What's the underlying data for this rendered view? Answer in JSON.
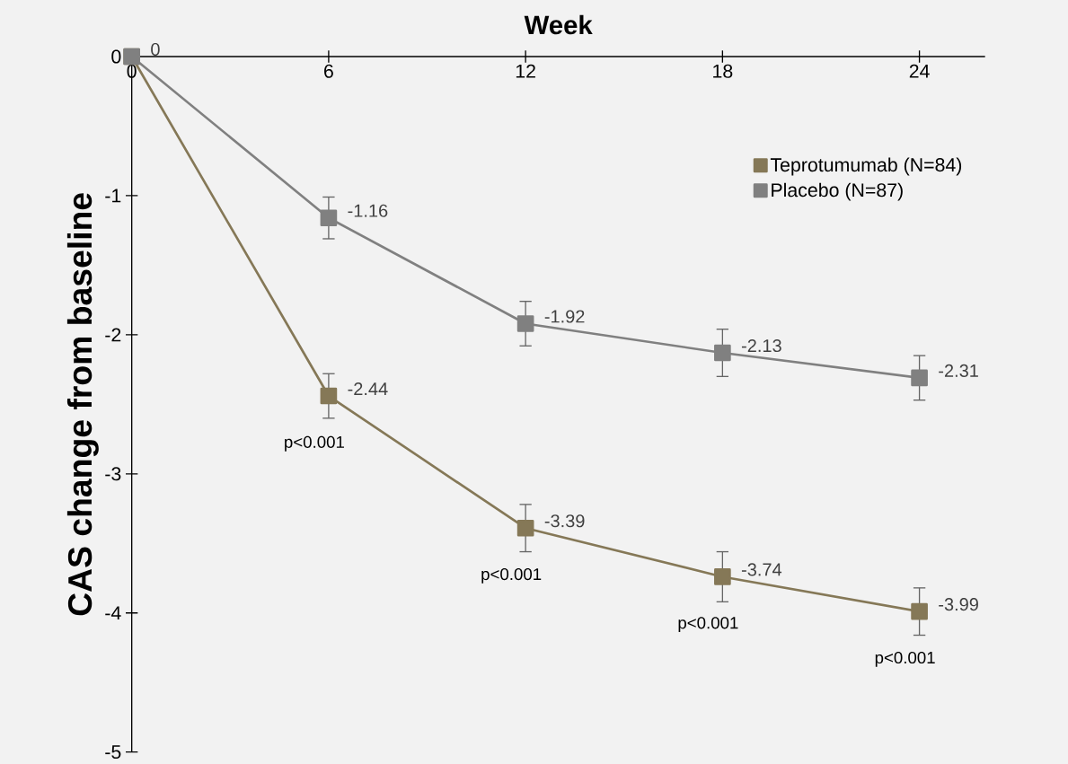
{
  "chart_data": {
    "type": "line",
    "xlabel": "Week",
    "ylabel": "CAS change from baseline",
    "x": [
      0,
      6,
      12,
      18,
      24
    ],
    "series": [
      {
        "name": "Teprotumumab (N=84)",
        "color": "#857857",
        "values": [
          0,
          -2.44,
          -3.39,
          -3.74,
          -3.99
        ],
        "errors": [
          null,
          0.16,
          0.17,
          0.18,
          0.17
        ],
        "value_labels": [
          "0",
          "-2.44",
          "-3.39",
          "-3.74",
          "-3.99"
        ]
      },
      {
        "name": "Placebo (N=87)",
        "color": "#808080",
        "values": [
          0,
          -1.16,
          -1.92,
          -2.13,
          -2.31
        ],
        "errors": [
          null,
          0.15,
          0.16,
          0.17,
          0.16
        ],
        "value_labels": [
          null,
          "-1.16",
          "-1.92",
          "-2.13",
          "-2.31"
        ]
      }
    ],
    "annotations": [
      "p<0.001",
      "p<0.001",
      "p<0.001",
      "p<0.001"
    ],
    "xlim": [
      0,
      26
    ],
    "ylim": [
      -5,
      0
    ],
    "xticks": [
      0,
      6,
      12,
      18,
      24
    ],
    "yticks": [
      -5,
      -4,
      -3,
      -2,
      -1,
      0
    ],
    "marker": "square",
    "line_style": "solid",
    "legend": "top right",
    "grid": false
  }
}
